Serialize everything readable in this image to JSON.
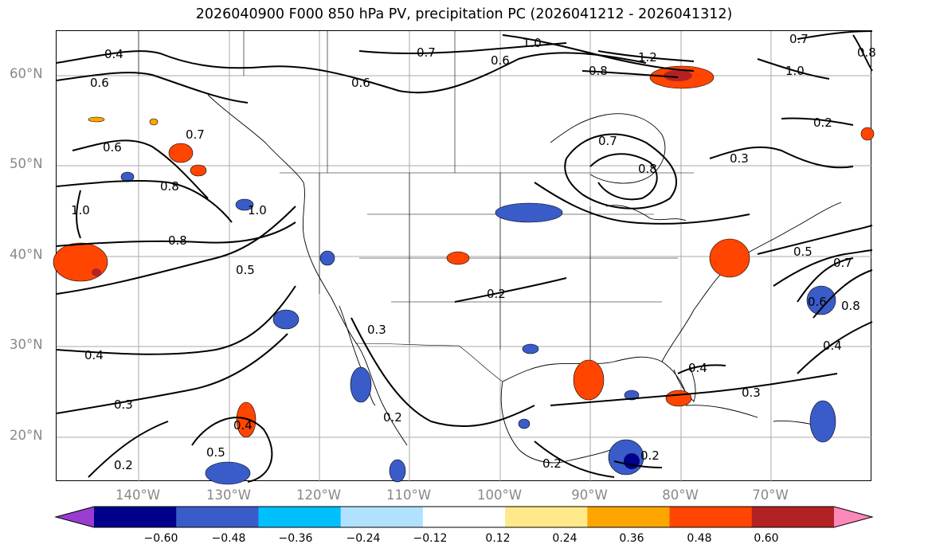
{
  "title": "2026040900 F000 850 hPa PV, precipitation PC (2026041212 - 2026041312)",
  "lat_labels": [
    "60°N",
    "50°N",
    "40°N",
    "30°N",
    "20°N"
  ],
  "lon_labels": [
    "140°W",
    "130°W",
    "120°W",
    "110°W",
    "100°W",
    "90°W",
    "80°W",
    "70°W"
  ],
  "colorbar": {
    "colors": [
      "#9b3cd0",
      "#00008b",
      "#3a5cc9",
      "#00bfff",
      "#b0e2ff",
      "#ffffff",
      "#ffe98a",
      "#ffa500",
      "#ff4500",
      "#b22222",
      "#ff88bb"
    ],
    "tick_labels": [
      "−0.60",
      "−0.48",
      "−0.36",
      "−0.24",
      "−0.12",
      "0.12",
      "0.24",
      "0.36",
      "0.48",
      "0.60"
    ]
  },
  "contour_labels": [
    "0.4",
    "0.6",
    "0.6",
    "0.7",
    "0.8",
    "1.0",
    "0.8",
    "1.0",
    "0.5",
    "0.4",
    "0.3",
    "0.2",
    "0.5",
    "0.4",
    "0.2",
    "0.3",
    "0.2",
    "0.2",
    "0.7",
    "0.6",
    "1.0",
    "0.6",
    "0.8",
    "1.2",
    "0.7",
    "0.8",
    "0.7",
    "1.0",
    "0.8",
    "0.3",
    "0.2",
    "0.5",
    "0.7",
    "0.6",
    "0.8",
    "0.4",
    "0.4",
    "0.3",
    "0.2"
  ]
}
